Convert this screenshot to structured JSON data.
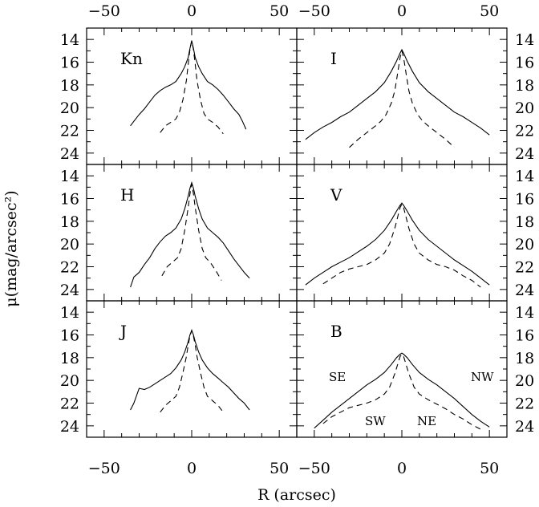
{
  "figure": {
    "xlabel": "R (arcsec)",
    "ylabel": "μ(mag/arcsec²)"
  },
  "chart_data": [
    {
      "type": "line",
      "panel": "Kn",
      "xlim": [
        -60,
        60
      ],
      "ylim": [
        25,
        13
      ],
      "xticks": [
        "−50",
        "0",
        "50"
      ],
      "yticks": [
        "14",
        "16",
        "18",
        "20",
        "22",
        "24"
      ],
      "series": [
        {
          "style": "solid",
          "x": [
            -35,
            -33,
            -30,
            -27,
            -24,
            -21,
            -18,
            -15,
            -12,
            -9,
            -6,
            -4,
            -2,
            -1,
            0,
            1,
            2,
            4,
            6,
            9,
            12,
            15,
            18,
            21,
            24,
            27,
            29,
            31
          ],
          "y": [
            21.6,
            21.2,
            20.6,
            20.1,
            19.5,
            18.9,
            18.5,
            18.2,
            18.0,
            17.7,
            17.0,
            16.4,
            15.6,
            14.8,
            14.1,
            14.8,
            15.6,
            16.4,
            17.0,
            17.7,
            18.0,
            18.4,
            18.9,
            19.5,
            20.1,
            20.6,
            21.2,
            21.9
          ]
        },
        {
          "style": "dashed",
          "x": [
            -18,
            -15,
            -12,
            -9,
            -7,
            -5,
            -3,
            -2,
            -1,
            0,
            1,
            2,
            3,
            5,
            7,
            9,
            12,
            15,
            18
          ],
          "y": [
            22.2,
            21.6,
            21.3,
            21.0,
            20.4,
            19.3,
            17.6,
            16.2,
            14.9,
            14.1,
            14.9,
            16.2,
            17.6,
            19.3,
            20.5,
            21.0,
            21.3,
            21.7,
            22.3
          ]
        }
      ]
    },
    {
      "type": "line",
      "panel": "I",
      "xlim": [
        -60,
        60
      ],
      "ylim": [
        25,
        13
      ],
      "xticks": [
        "−50",
        "0",
        "50"
      ],
      "yticks": [
        "14",
        "16",
        "18",
        "20",
        "22",
        "24"
      ],
      "series": [
        {
          "style": "solid",
          "x": [
            -55,
            -50,
            -45,
            -40,
            -35,
            -30,
            -25,
            -20,
            -15,
            -10,
            -6,
            -3,
            -1,
            0,
            1,
            3,
            6,
            10,
            15,
            20,
            25,
            30,
            35,
            40,
            45,
            50
          ],
          "y": [
            22.8,
            22.2,
            21.7,
            21.3,
            20.8,
            20.4,
            19.8,
            19.2,
            18.6,
            17.8,
            16.8,
            15.9,
            15.2,
            14.9,
            15.2,
            15.9,
            16.8,
            17.8,
            18.6,
            19.2,
            19.8,
            20.4,
            20.8,
            21.3,
            21.8,
            22.4
          ]
        },
        {
          "style": "dashed",
          "x": [
            -30,
            -25,
            -20,
            -15,
            -12,
            -9,
            -6,
            -4,
            -2,
            -1,
            0,
            1,
            2,
            4,
            6,
            9,
            12,
            15,
            20,
            25,
            30
          ],
          "y": [
            23.5,
            22.8,
            22.2,
            21.6,
            21.2,
            20.6,
            19.6,
            18.5,
            16.6,
            15.6,
            15.0,
            15.6,
            16.6,
            18.5,
            19.6,
            20.6,
            21.2,
            21.6,
            22.2,
            22.8,
            23.5
          ]
        }
      ]
    },
    {
      "type": "line",
      "panel": "H",
      "xlim": [
        -60,
        60
      ],
      "ylim": [
        25,
        13
      ],
      "xticks": [
        "−50",
        "0",
        "50"
      ],
      "yticks": [
        "14",
        "16",
        "18",
        "20",
        "22",
        "24"
      ],
      "series": [
        {
          "style": "solid",
          "x": [
            -35,
            -33,
            -30,
            -27,
            -24,
            -21,
            -18,
            -15,
            -12,
            -9,
            -6,
            -4,
            -2,
            -1,
            0,
            1,
            2,
            4,
            6,
            9,
            12,
            15,
            18,
            21,
            24,
            27,
            30,
            33
          ],
          "y": [
            23.8,
            22.9,
            22.5,
            21.8,
            21.2,
            20.4,
            19.8,
            19.3,
            19.0,
            18.6,
            17.8,
            16.9,
            15.8,
            15.1,
            14.6,
            15.1,
            15.8,
            16.9,
            17.8,
            18.6,
            19.0,
            19.4,
            19.9,
            20.6,
            21.3,
            21.9,
            22.5,
            23.0
          ]
        },
        {
          "style": "dashed",
          "x": [
            -17,
            -14,
            -11,
            -8,
            -6,
            -4,
            -2,
            -1,
            0,
            1,
            2,
            4,
            6,
            8,
            11,
            14,
            17
          ],
          "y": [
            22.8,
            22.0,
            21.6,
            21.2,
            20.4,
            18.8,
            16.8,
            15.6,
            14.7,
            15.6,
            16.8,
            18.8,
            20.4,
            21.2,
            21.7,
            22.4,
            23.2
          ]
        }
      ]
    },
    {
      "type": "line",
      "panel": "V",
      "xlim": [
        -60,
        60
      ],
      "ylim": [
        25,
        13
      ],
      "xticks": [
        "−50",
        "0",
        "50"
      ],
      "yticks": [
        "14",
        "16",
        "18",
        "20",
        "22",
        "24"
      ],
      "series": [
        {
          "style": "solid",
          "x": [
            -55,
            -50,
            -45,
            -40,
            -35,
            -30,
            -25,
            -20,
            -15,
            -10,
            -6,
            -3,
            -1,
            0,
            1,
            3,
            6,
            10,
            15,
            20,
            25,
            30,
            35,
            40,
            45,
            50
          ],
          "y": [
            23.6,
            23.0,
            22.5,
            22.0,
            21.6,
            21.2,
            20.7,
            20.2,
            19.6,
            18.8,
            17.9,
            17.1,
            16.6,
            16.4,
            16.6,
            17.1,
            17.9,
            18.8,
            19.6,
            20.2,
            20.8,
            21.4,
            21.9,
            22.4,
            23.0,
            23.6
          ]
        },
        {
          "style": "dashed",
          "x": [
            -45,
            -40,
            -35,
            -30,
            -25,
            -20,
            -15,
            -10,
            -7,
            -4,
            -2,
            -1,
            0,
            1,
            2,
            4,
            7,
            10,
            15,
            20,
            25,
            30,
            35,
            40,
            45
          ],
          "y": [
            23.5,
            23.0,
            22.5,
            22.2,
            22.0,
            21.8,
            21.4,
            20.8,
            20.0,
            18.6,
            17.4,
            16.8,
            16.5,
            16.8,
            17.4,
            18.6,
            20.0,
            20.8,
            21.4,
            21.8,
            22.0,
            22.3,
            22.8,
            23.2,
            23.8
          ]
        }
      ]
    },
    {
      "type": "line",
      "panel": "J",
      "xlim": [
        -60,
        60
      ],
      "ylim": [
        25,
        13
      ],
      "xticks": [
        "−50",
        "0",
        "50"
      ],
      "yticks": [
        "14",
        "16",
        "18",
        "20",
        "22",
        "24"
      ],
      "series": [
        {
          "style": "solid",
          "x": [
            -35,
            -33,
            -30,
            -27,
            -24,
            -21,
            -18,
            -15,
            -12,
            -9,
            -6,
            -4,
            -2,
            -1,
            0,
            1,
            2,
            4,
            6,
            9,
            12,
            15,
            18,
            21,
            24,
            27,
            30,
            33
          ],
          "y": [
            22.6,
            22.0,
            20.7,
            20.8,
            20.6,
            20.3,
            20.0,
            19.7,
            19.4,
            18.9,
            18.2,
            17.5,
            16.6,
            16.0,
            15.6,
            16.0,
            16.6,
            17.5,
            18.2,
            18.9,
            19.4,
            19.8,
            20.2,
            20.6,
            21.1,
            21.6,
            22.0,
            22.6
          ]
        },
        {
          "style": "dashed",
          "x": [
            -18,
            -15,
            -12,
            -9,
            -7,
            -5,
            -3,
            -2,
            -1,
            0,
            1,
            2,
            3,
            5,
            7,
            9,
            12,
            15,
            18
          ],
          "y": [
            22.8,
            22.2,
            21.8,
            21.4,
            20.6,
            19.3,
            17.9,
            16.9,
            16.1,
            15.6,
            16.1,
            16.9,
            17.9,
            19.3,
            20.6,
            21.4,
            21.8,
            22.2,
            22.8
          ]
        }
      ]
    },
    {
      "type": "line",
      "panel": "B",
      "xlim": [
        -60,
        60
      ],
      "ylim": [
        25,
        13
      ],
      "xticks": [
        "−50",
        "0",
        "50"
      ],
      "yticks": [
        "14",
        "16",
        "18",
        "20",
        "22",
        "24"
      ],
      "annotations": [
        "SE",
        "NW",
        "SW",
        "NE"
      ],
      "series": [
        {
          "style": "solid",
          "x": [
            -50,
            -45,
            -40,
            -35,
            -30,
            -25,
            -20,
            -15,
            -10,
            -6,
            -3,
            -1,
            0,
            1,
            3,
            6,
            10,
            15,
            20,
            25,
            30,
            35,
            40,
            45,
            50
          ],
          "y": [
            24.2,
            23.5,
            22.8,
            22.2,
            21.6,
            21.0,
            20.4,
            19.9,
            19.3,
            18.6,
            18.0,
            17.7,
            17.6,
            17.7,
            18.0,
            18.6,
            19.3,
            19.9,
            20.4,
            21.0,
            21.6,
            22.3,
            23.0,
            23.6,
            24.1
          ]
        },
        {
          "style": "dashed",
          "x": [
            -45,
            -40,
            -35,
            -30,
            -25,
            -20,
            -15,
            -10,
            -7,
            -4,
            -2,
            -1,
            0,
            1,
            2,
            4,
            7,
            10,
            15,
            20,
            25,
            30,
            35,
            40,
            45
          ],
          "y": [
            23.8,
            23.2,
            22.8,
            22.4,
            22.2,
            22.0,
            21.7,
            21.2,
            20.6,
            19.4,
            18.4,
            17.9,
            17.7,
            17.9,
            18.4,
            19.4,
            20.6,
            21.2,
            21.7,
            22.1,
            22.5,
            23.0,
            23.4,
            23.9,
            24.3
          ]
        }
      ]
    }
  ]
}
